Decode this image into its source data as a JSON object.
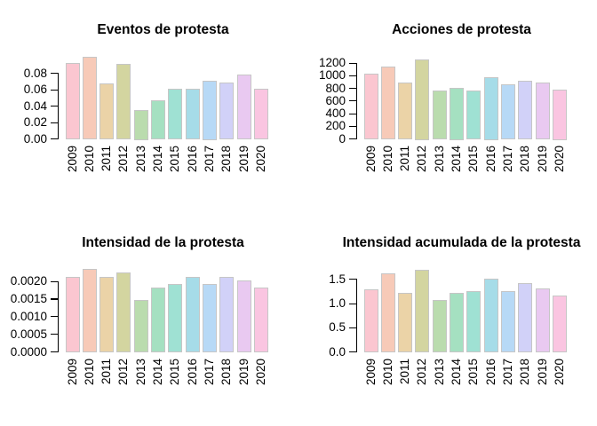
{
  "figure": {
    "background": "#FFFFFF",
    "text_color": "#000000",
    "bar_border_color": "#C6C6C6",
    "palette": [
      "#FBC6D0",
      "#F7CAB8",
      "#EBD3A7",
      "#D3D5A0",
      "#BADCAE",
      "#A5E0C1",
      "#9FE1D3",
      "#A6DCE8",
      "#B7D9F6",
      "#D1D1F8",
      "#E9C9F1",
      "#FAC5E1"
    ]
  },
  "chart_data": [
    {
      "type": "bar",
      "title": "Eventos de protesta",
      "categories": [
        "2009",
        "2010",
        "2011",
        "2012",
        "2013",
        "2014",
        "2015",
        "2016",
        "2017",
        "2018",
        "2019",
        "2020"
      ],
      "values": [
        0.092,
        0.099,
        0.067,
        0.091,
        0.035,
        0.047,
        0.061,
        0.061,
        0.07,
        0.068,
        0.078,
        0.061
      ],
      "yticks": [
        0,
        0.02,
        0.04,
        0.06,
        0.08
      ],
      "ytick_labels": [
        "0.00",
        "0.02",
        "0.04",
        "0.06",
        "0.08"
      ],
      "xlabel": "",
      "ylabel": "",
      "ylim": [
        0,
        0.099
      ],
      "grid": false,
      "legend": false
    },
    {
      "type": "bar",
      "title": "Acciones de protesta",
      "categories": [
        "2009",
        "2010",
        "2011",
        "2012",
        "2013",
        "2014",
        "2015",
        "2016",
        "2017",
        "2018",
        "2019",
        "2020"
      ],
      "values": [
        1030,
        1140,
        885,
        1250,
        760,
        800,
        760,
        975,
        855,
        915,
        880,
        775
      ],
      "yticks": [
        0,
        200,
        400,
        600,
        800,
        1000,
        1200
      ],
      "ytick_labels": [
        "0",
        "200",
        "400",
        "600",
        "800",
        "1000",
        "1200"
      ],
      "xlabel": "",
      "ylabel": "",
      "ylim": [
        0,
        1250
      ],
      "grid": false,
      "legend": false
    },
    {
      "type": "bar",
      "title": "Intensidad de la protesta",
      "categories": [
        "2009",
        "2010",
        "2011",
        "2012",
        "2013",
        "2014",
        "2015",
        "2016",
        "2017",
        "2018",
        "2019",
        "2020"
      ],
      "values": [
        0.00212,
        0.00233,
        0.00212,
        0.00223,
        0.00145,
        0.00181,
        0.00191,
        0.00212,
        0.00191,
        0.00212,
        0.00202,
        0.00181
      ],
      "yticks": [
        0,
        0.0005,
        0.001,
        0.0015,
        0.002
      ],
      "ytick_labels": [
        "0.0000",
        "0.0005",
        "0.0010",
        "0.0015",
        "0.0020"
      ],
      "xlabel": "",
      "ylabel": "",
      "ylim": [
        0,
        0.00233
      ],
      "grid": false,
      "legend": false
    },
    {
      "type": "bar",
      "title": "Intensidad acumulada de la protesta",
      "categories": [
        "2009",
        "2010",
        "2011",
        "2012",
        "2013",
        "2014",
        "2015",
        "2016",
        "2017",
        "2018",
        "2019",
        "2020"
      ],
      "values": [
        1.28,
        1.62,
        1.22,
        1.68,
        1.06,
        1.21,
        1.25,
        1.5,
        1.25,
        1.41,
        1.3,
        1.15
      ],
      "yticks": [
        0,
        0.5,
        1.0,
        1.5
      ],
      "ytick_labels": [
        "0.0",
        "0.5",
        "1.0",
        "1.5"
      ],
      "xlabel": "",
      "ylabel": "",
      "ylim": [
        0,
        1.68
      ],
      "grid": false,
      "legend": false
    }
  ]
}
